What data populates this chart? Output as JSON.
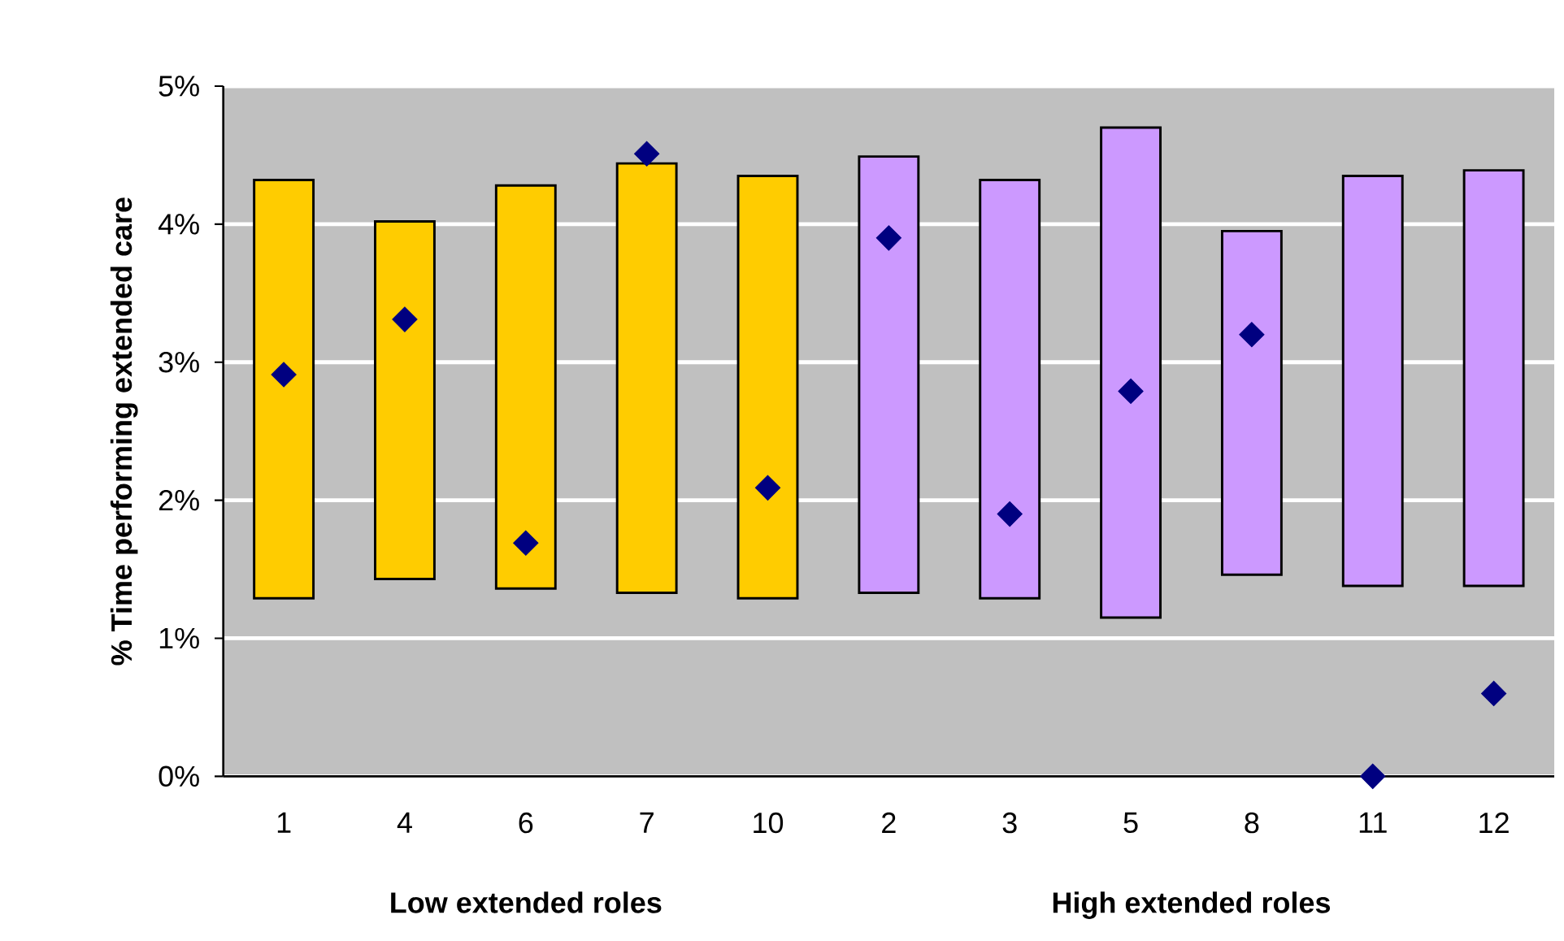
{
  "chart_data": {
    "type": "bar",
    "ylabel": "% Time performing extended care",
    "categories": [
      "1",
      "4",
      "6",
      "7",
      "10",
      "2",
      "3",
      "5",
      "8",
      "11",
      "12"
    ],
    "series": [
      {
        "base": [
          1.29,
          1.43,
          1.36,
          1.33,
          1.29,
          1.33,
          1.29,
          1.15,
          1.46,
          1.38,
          1.38
        ],
        "values": [
          3.03,
          2.59,
          2.92,
          3.11,
          3.06,
          3.16,
          3.03,
          3.55,
          2.49,
          2.97,
          3.01
        ],
        "colors": [
          "#ffcc00",
          "#ffcc00",
          "#ffcc00",
          "#ffcc00",
          "#ffcc00",
          "#cc99ff",
          "#cc99ff",
          "#cc99ff",
          "#cc99ff",
          "#cc99ff",
          "#cc99ff"
        ]
      },
      {
        "type": "scatter",
        "marker": "diamond",
        "color": "#000080",
        "values": [
          2.91,
          3.31,
          1.69,
          4.51,
          2.09,
          3.9,
          1.9,
          2.79,
          3.2,
          0,
          0.6
        ]
      }
    ],
    "ylim": [
      0,
      5
    ],
    "yticks": [
      {
        "value": 0,
        "label": "0%"
      },
      {
        "value": 1,
        "label": "1%"
      },
      {
        "value": 2,
        "label": "2%"
      },
      {
        "value": 3,
        "label": "3%"
      },
      {
        "value": 4,
        "label": "4%"
      },
      {
        "value": 5,
        "label": "5%"
      }
    ],
    "grid": "y",
    "annotations": [
      "Low extended roles",
      "High extended roles"
    ]
  }
}
